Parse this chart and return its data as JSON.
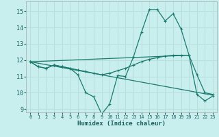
{
  "xlabel": "Humidex (Indice chaleur)",
  "background_color": "#c8eeee",
  "grid_color": "#b8dede",
  "line_color": "#1a7a6e",
  "xlim": [
    -0.5,
    23.5
  ],
  "ylim": [
    8.8,
    15.6
  ],
  "yticks": [
    9,
    10,
    11,
    12,
    13,
    14,
    15
  ],
  "xticks": [
    0,
    1,
    2,
    3,
    4,
    5,
    6,
    7,
    8,
    9,
    10,
    11,
    12,
    13,
    14,
    15,
    16,
    17,
    18,
    19,
    20,
    21,
    22,
    23
  ],
  "line1_x": [
    0,
    1,
    2,
    3,
    4,
    5,
    6,
    7,
    8,
    9,
    10,
    11,
    12,
    13,
    14,
    15,
    16,
    17,
    18,
    19,
    20,
    21,
    22,
    23
  ],
  "line1_y": [
    11.9,
    11.6,
    11.5,
    11.7,
    11.6,
    11.5,
    11.1,
    10.0,
    9.75,
    8.7,
    9.3,
    11.05,
    11.0,
    12.2,
    13.7,
    15.1,
    15.1,
    14.4,
    14.85,
    13.9,
    12.3,
    9.9,
    9.5,
    9.8
  ],
  "line2_x": [
    0,
    1,
    2,
    3,
    4,
    5,
    6,
    7,
    8,
    9,
    10,
    11,
    12,
    13,
    14,
    15,
    16,
    17,
    18,
    19,
    20,
    21,
    22,
    23
  ],
  "line2_y": [
    11.9,
    11.6,
    11.5,
    11.7,
    11.6,
    11.5,
    11.4,
    11.3,
    11.2,
    11.1,
    11.2,
    11.35,
    11.5,
    11.7,
    11.9,
    12.05,
    12.15,
    12.25,
    12.3,
    12.3,
    12.3,
    11.1,
    10.0,
    9.9
  ],
  "line3_x": [
    0,
    23
  ],
  "line3_y": [
    11.9,
    9.85
  ],
  "line4_x": [
    0,
    20
  ],
  "line4_y": [
    11.9,
    12.3
  ]
}
